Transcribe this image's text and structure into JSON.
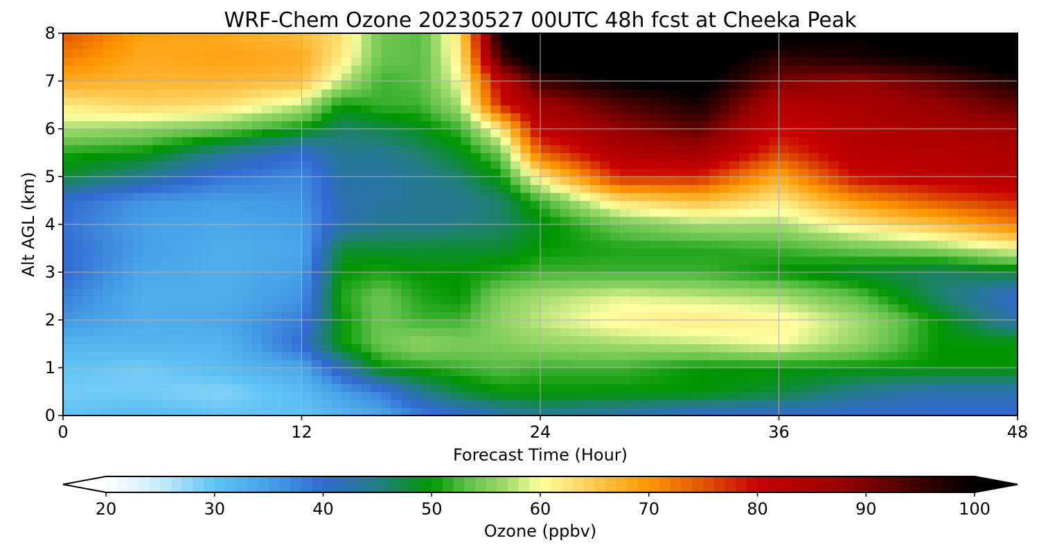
{
  "chart_data": {
    "type": "heatmap",
    "title": "WRF-Chem Ozone  20230527 00UTC 48h fcst at Cheeka Peak",
    "xlabel": "Forecast Time (Hour)",
    "ylabel": "Alt AGL (km)",
    "xlim": [
      0,
      48
    ],
    "ylim": [
      0,
      8
    ],
    "x_ticks": [
      "0",
      "12",
      "24",
      "36",
      "48"
    ],
    "y_ticks": [
      "0",
      "1",
      "2",
      "3",
      "4",
      "5",
      "6",
      "7",
      "8"
    ],
    "grid": true,
    "colorbar": {
      "label": "Ozone  (ppbv)",
      "range": [
        20,
        100
      ],
      "ticks": [
        "20",
        "30",
        "40",
        "50",
        "60",
        "70",
        "80",
        "90",
        "100"
      ],
      "extend": "both",
      "min_color": "#ffffff",
      "max_color": "#000000"
    },
    "x": [
      0,
      4,
      8,
      12,
      14,
      16,
      18,
      20,
      22,
      24,
      28,
      32,
      36,
      40,
      44,
      48
    ],
    "y": [
      0,
      0.5,
      1,
      1.5,
      2,
      2.5,
      3,
      3.5,
      4,
      4.5,
      5,
      5.5,
      6,
      6.5,
      7,
      7.5,
      8
    ],
    "values": [
      [
        30,
        31,
        30,
        30,
        32,
        34,
        38,
        40,
        42,
        44,
        42,
        40,
        40,
        40,
        40,
        40
      ],
      [
        29,
        29,
        28,
        31,
        35,
        38,
        44,
        48,
        50,
        50,
        50,
        50,
        48,
        44,
        42,
        42
      ],
      [
        30,
        29,
        31,
        34,
        42,
        50,
        51,
        52,
        53,
        52,
        52,
        50,
        50,
        50,
        50,
        50
      ],
      [
        32,
        32,
        32,
        40,
        50,
        54,
        56,
        55,
        55,
        56,
        57,
        58,
        60,
        56,
        50,
        50
      ],
      [
        36,
        33,
        34,
        38,
        50,
        54,
        52,
        52,
        56,
        58,
        61,
        62,
        61,
        57,
        50,
        42
      ],
      [
        38,
        33,
        33,
        36,
        51,
        54,
        51,
        50,
        55,
        57,
        59,
        58,
        57,
        53,
        46,
        40
      ],
      [
        40,
        34,
        33,
        35,
        50,
        51,
        50,
        50,
        51,
        52,
        52,
        52,
        50,
        48,
        46,
        48
      ],
      [
        40,
        35,
        33,
        34,
        48,
        48,
        48,
        48,
        48,
        50,
        51,
        51,
        52,
        54,
        56,
        60
      ],
      [
        39,
        35,
        34,
        35,
        42,
        44,
        44,
        45,
        46,
        49,
        54,
        57,
        57,
        62,
        66,
        72
      ],
      [
        40,
        36,
        35,
        36,
        42,
        43,
        44,
        44,
        46,
        52,
        63,
        66,
        62,
        70,
        75,
        78
      ],
      [
        48,
        44,
        39,
        37,
        43,
        43,
        44,
        46,
        50,
        62,
        78,
        78,
        68,
        80,
        82,
        84
      ],
      [
        51,
        50,
        44,
        40,
        44,
        44,
        46,
        49,
        54,
        74,
        84,
        86,
        76,
        83,
        83,
        84
      ],
      [
        57,
        56,
        54,
        50,
        46,
        47,
        49,
        52,
        62,
        82,
        88,
        92,
        80,
        84,
        85,
        87
      ],
      [
        62,
        64,
        63,
        58,
        50,
        52,
        52,
        57,
        78,
        86,
        93,
        98,
        83,
        85,
        88,
        92
      ],
      [
        68,
        67,
        67,
        66,
        58,
        52,
        53,
        60,
        82,
        95,
        100,
        102,
        90,
        88,
        92,
        98
      ],
      [
        72,
        68,
        69,
        68,
        62,
        54,
        53,
        62,
        95,
        104,
        106,
        104,
        96,
        98,
        100,
        104
      ],
      [
        75,
        69,
        68,
        66,
        63,
        54,
        53,
        63,
        100,
        108,
        110,
        106,
        102,
        100,
        104,
        106
      ]
    ]
  }
}
